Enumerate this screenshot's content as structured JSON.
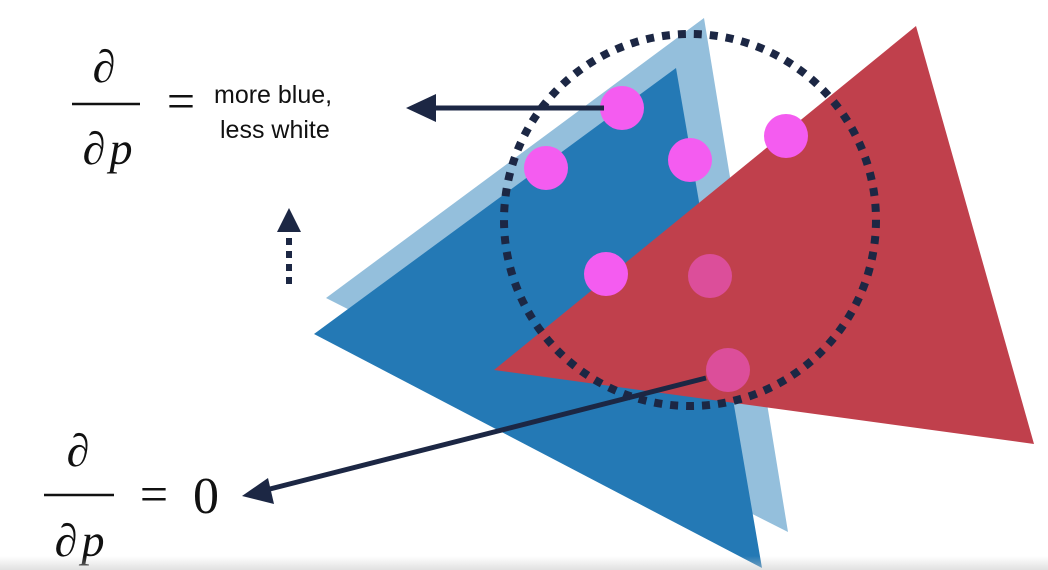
{
  "colors": {
    "light_blue_triangle": "#94bfdc",
    "blue_triangle": "#2479b5",
    "red_triangle": "#c0404c",
    "sample_point": "#f45cf0",
    "sample_point_on_red": "#dc4e9a",
    "dotted_circle": "#1c2744",
    "arrow": "#1c2744"
  },
  "top_equation": {
    "numerator": "∂",
    "denominator_d": "∂",
    "denominator_p": "p",
    "equals": "=",
    "result_line1": "more blue,",
    "result_line2": "less white"
  },
  "bottom_equation": {
    "numerator": "∂",
    "denominator_d": "∂",
    "denominator_p": "p",
    "equals": "=",
    "result": "0"
  },
  "icons": {
    "left_arrow": "arrow-left-icon",
    "dotted_up_arrow": "dotted-arrow-up-icon"
  }
}
